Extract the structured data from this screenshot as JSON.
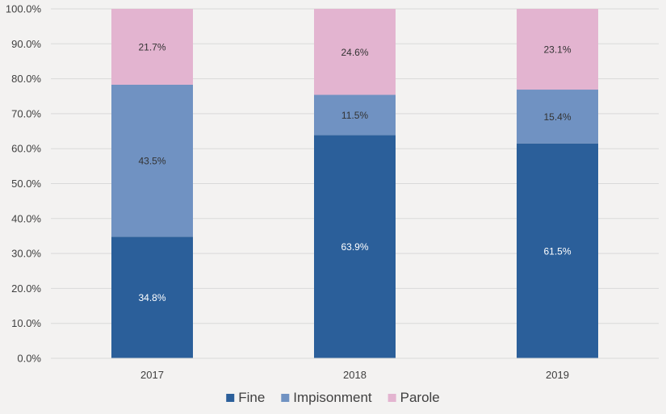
{
  "chart_data": {
    "type": "bar",
    "stacked": true,
    "categories": [
      "2017",
      "2018",
      "2019"
    ],
    "series": [
      {
        "name": "Fine",
        "color": "#2b5f9a",
        "label_color": "#ffffff",
        "values": [
          34.8,
          63.9,
          61.5
        ]
      },
      {
        "name": "Impisonment",
        "color": "#7092c2",
        "label_color": "#333333",
        "values": [
          43.5,
          11.5,
          15.4
        ]
      },
      {
        "name": "Parole",
        "color": "#e3b4d0",
        "label_color": "#333333",
        "values": [
          21.7,
          24.6,
          23.1
        ]
      }
    ],
    "data_labels": [
      [
        "34.8%",
        "63.9%",
        "61.5%"
      ],
      [
        "43.5%",
        "11.5%",
        "15.4%"
      ],
      [
        "21.7%",
        "24.6%",
        "23.1%"
      ]
    ],
    "ylim": [
      0,
      100
    ],
    "yticks": [
      0,
      10,
      20,
      30,
      40,
      50,
      60,
      70,
      80,
      90,
      100
    ],
    "ytick_labels": [
      "0.0%",
      "10.0%",
      "20.0%",
      "30.0%",
      "40.0%",
      "50.0%",
      "60.0%",
      "70.0%",
      "80.0%",
      "90.0%",
      "100.0%"
    ],
    "grid": true,
    "legend_position": "bottom",
    "title": "",
    "xlabel": "",
    "ylabel": ""
  }
}
